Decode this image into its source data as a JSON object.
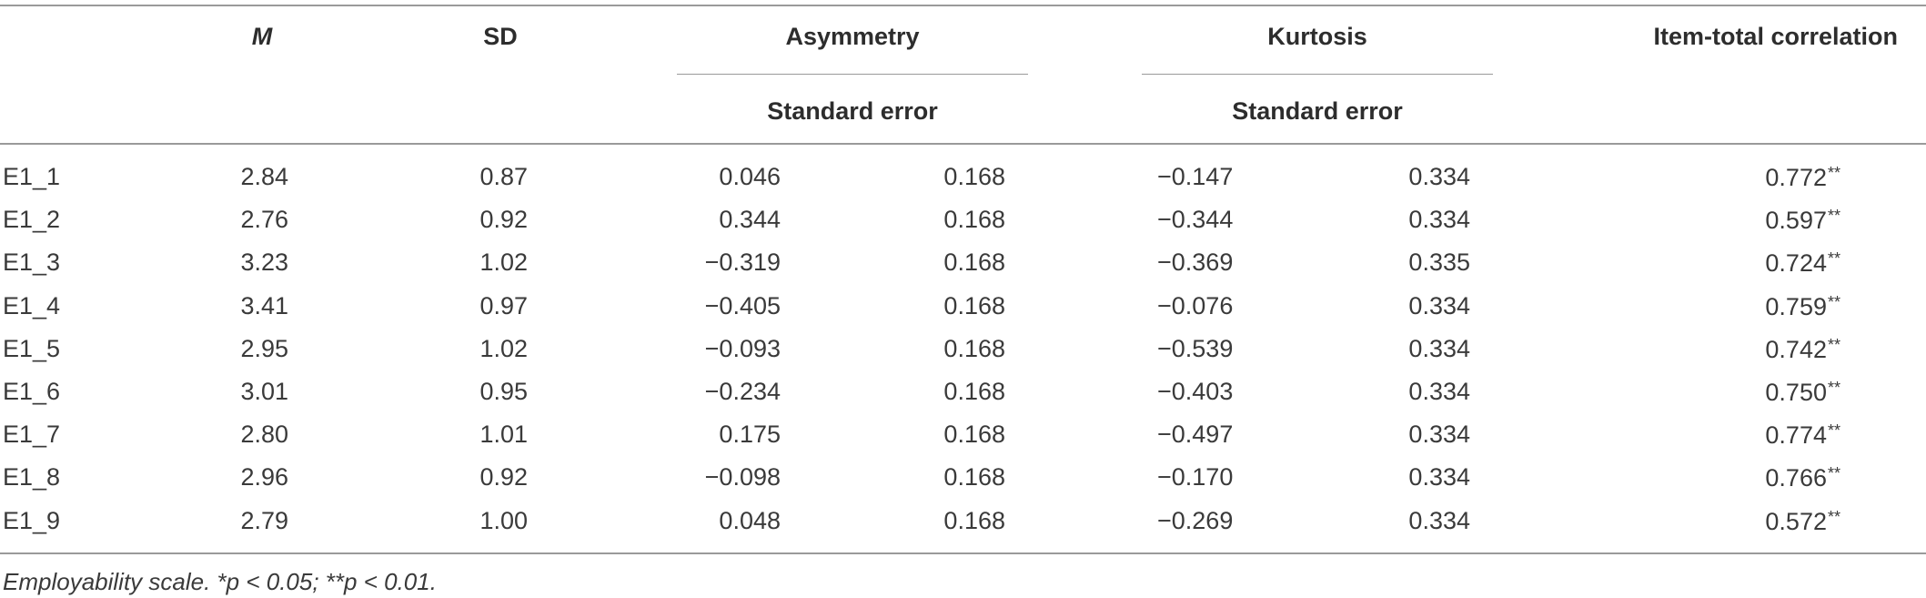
{
  "table": {
    "headers": {
      "m": "M",
      "sd": "SD",
      "asymmetry": "Asymmetry",
      "kurtosis": "Kurtosis",
      "item_total": "Item-total correlation",
      "asym_sub": "Standard error",
      "kurt_sub": "Standard error"
    },
    "rows": [
      {
        "item": "E1_1",
        "m": "2.84",
        "sd": "0.87",
        "asym": "0.046",
        "asym_se": "0.168",
        "kurt": "−0.147",
        "kurt_se": "0.334",
        "corr": "0.772",
        "sig": "**"
      },
      {
        "item": "E1_2",
        "m": "2.76",
        "sd": "0.92",
        "asym": "0.344",
        "asym_se": "0.168",
        "kurt": "−0.344",
        "kurt_se": "0.334",
        "corr": "0.597",
        "sig": "**"
      },
      {
        "item": "E1_3",
        "m": "3.23",
        "sd": "1.02",
        "asym": "−0.319",
        "asym_se": "0.168",
        "kurt": "−0.369",
        "kurt_se": "0.335",
        "corr": "0.724",
        "sig": "**"
      },
      {
        "item": "E1_4",
        "m": "3.41",
        "sd": "0.97",
        "asym": "−0.405",
        "asym_se": "0.168",
        "kurt": "−0.076",
        "kurt_se": "0.334",
        "corr": "0.759",
        "sig": "**"
      },
      {
        "item": "E1_5",
        "m": "2.95",
        "sd": "1.02",
        "asym": "−0.093",
        "asym_se": "0.168",
        "kurt": "−0.539",
        "kurt_se": "0.334",
        "corr": "0.742",
        "sig": "**"
      },
      {
        "item": "E1_6",
        "m": "3.01",
        "sd": "0.95",
        "asym": "−0.234",
        "asym_se": "0.168",
        "kurt": "−0.403",
        "kurt_se": "0.334",
        "corr": "0.750",
        "sig": "**"
      },
      {
        "item": "E1_7",
        "m": "2.80",
        "sd": "1.01",
        "asym": "0.175",
        "asym_se": "0.168",
        "kurt": "−0.497",
        "kurt_se": "0.334",
        "corr": "0.774",
        "sig": "**"
      },
      {
        "item": "E1_8",
        "m": "2.96",
        "sd": "0.92",
        "asym": "−0.098",
        "asym_se": "0.168",
        "kurt": "−0.170",
        "kurt_se": "0.334",
        "corr": "0.766",
        "sig": "**"
      },
      {
        "item": "E1_9",
        "m": "2.79",
        "sd": "1.00",
        "asym": "0.048",
        "asym_se": "0.168",
        "kurt": "−0.269",
        "kurt_se": "0.334",
        "corr": "0.572",
        "sig": "**"
      }
    ],
    "footnote": "Employability scale. *p < 0.05; **p < 0.01."
  }
}
